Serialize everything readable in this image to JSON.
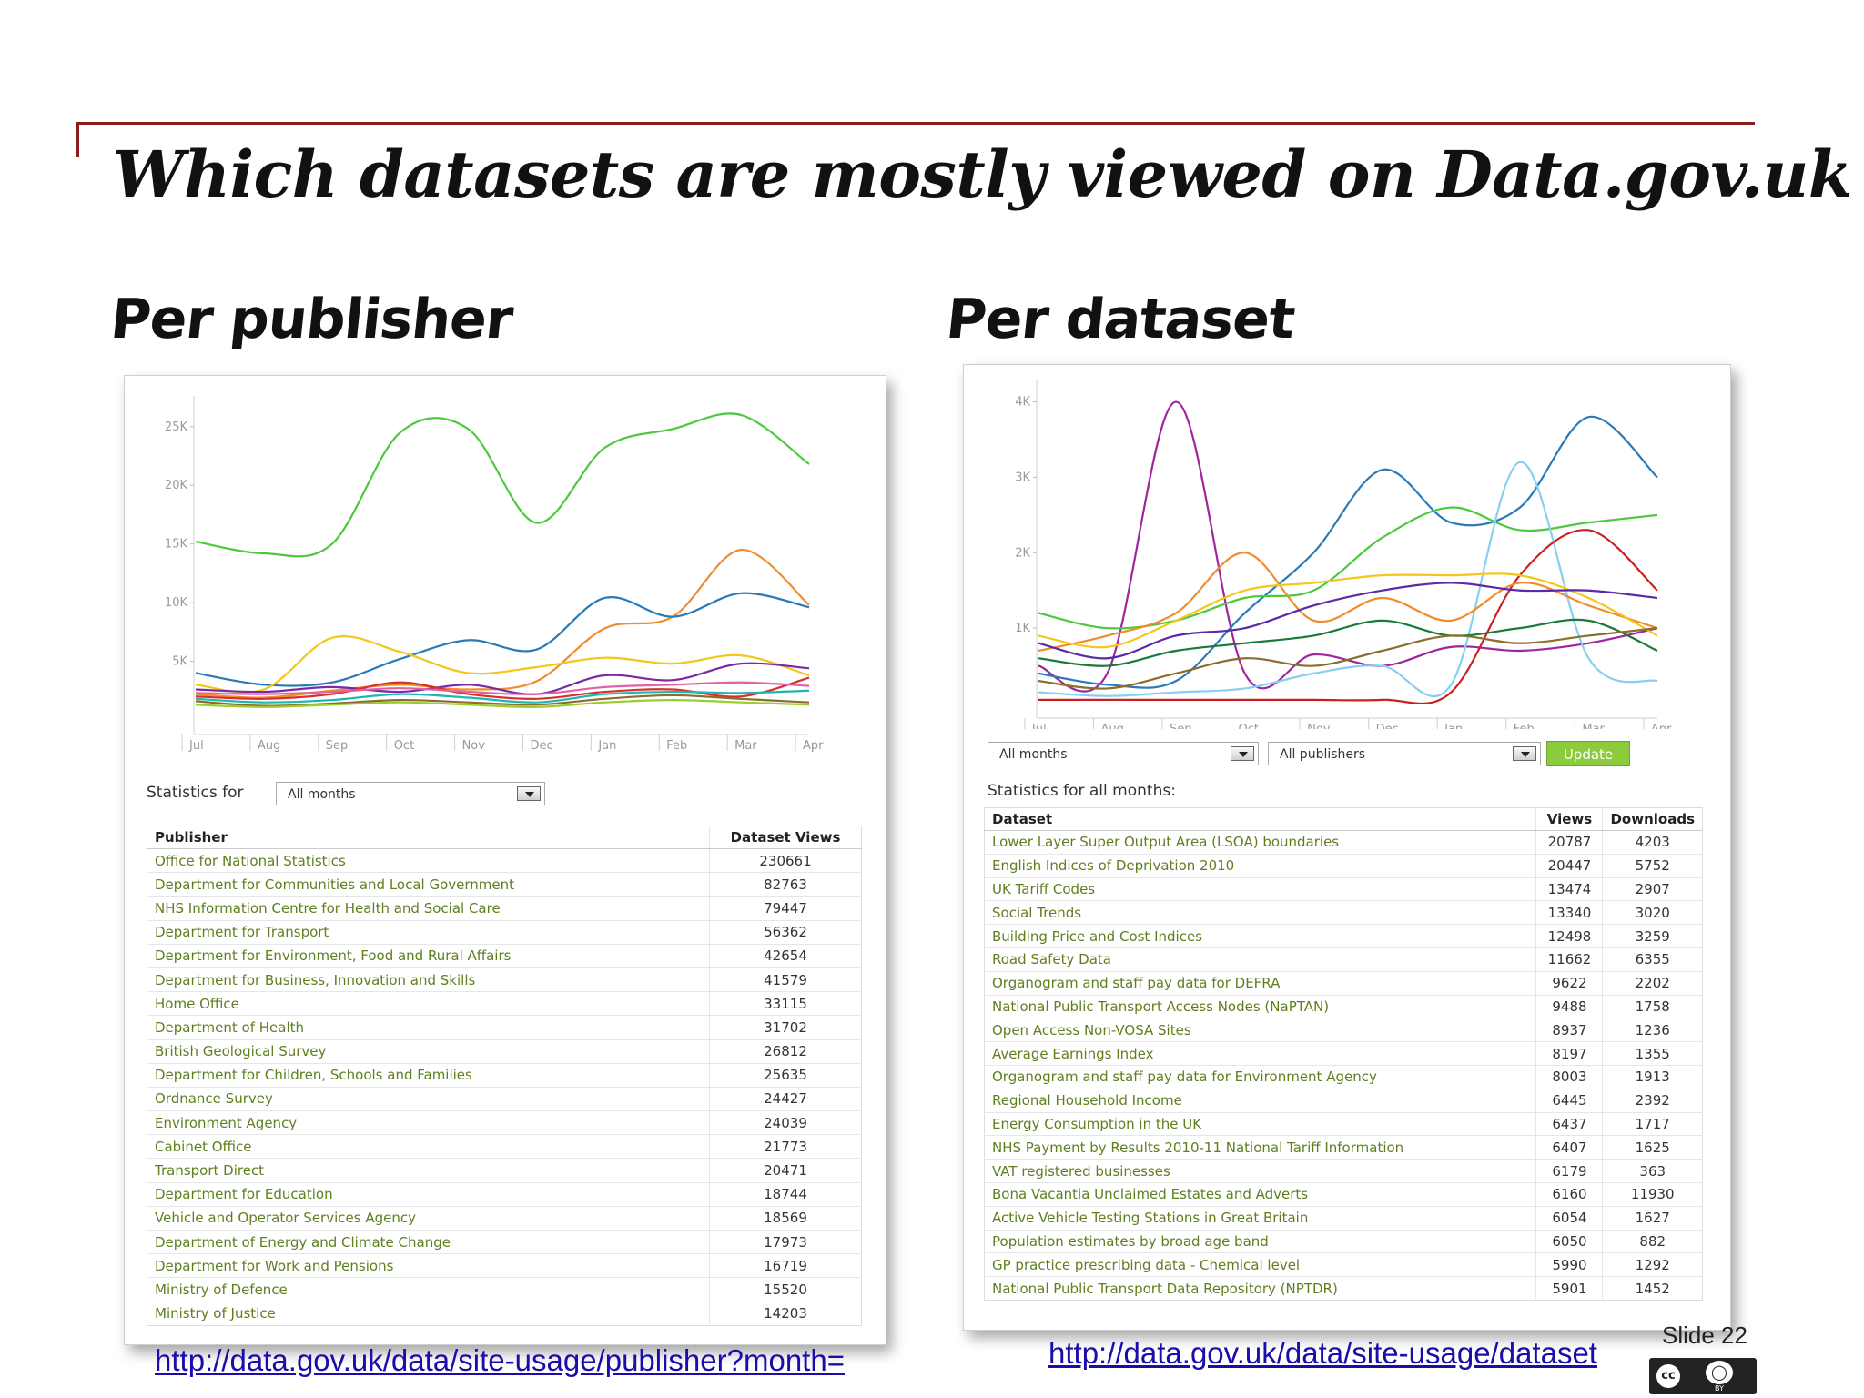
{
  "slide": {
    "title": "Which datasets are mostly viewed on Data.gov.uk",
    "left_heading": "Per publisher",
    "right_heading": "Per dataset",
    "left_url": "http://data.gov.uk/data/site-usage/publisher?month=",
    "right_url": "http://data.gov.uk/data/site-usage/dataset",
    "slide_number": "Slide 22",
    "license_icon": "cc-by-icon",
    "accent_color": "#8c1d1d"
  },
  "publisher_panel": {
    "statistics_for_label": "Statistics for",
    "month_select": "All months",
    "columns": [
      "Publisher",
      "Dataset Views"
    ],
    "rows": [
      [
        "Office for National Statistics",
        "230661"
      ],
      [
        "Department for Communities and Local Government",
        "82763"
      ],
      [
        "NHS Information Centre for Health and Social Care",
        "79447"
      ],
      [
        "Department for Transport",
        "56362"
      ],
      [
        "Department for Environment, Food and Rural Affairs",
        "42654"
      ],
      [
        "Department for Business, Innovation and Skills",
        "41579"
      ],
      [
        "Home Office",
        "33115"
      ],
      [
        "Department of Health",
        "31702"
      ],
      [
        "British Geological Survey",
        "26812"
      ],
      [
        "Department for Children, Schools and Families",
        "25635"
      ],
      [
        "Ordnance Survey",
        "24427"
      ],
      [
        "Environment Agency",
        "24039"
      ],
      [
        "Cabinet Office",
        "21773"
      ],
      [
        "Transport Direct",
        "20471"
      ],
      [
        "Department for Education",
        "18744"
      ],
      [
        "Vehicle and Operator Services Agency",
        "18569"
      ],
      [
        "Department of Energy and Climate Change",
        "17973"
      ],
      [
        "Department for Work and Pensions",
        "16719"
      ],
      [
        "Ministry of Defence",
        "15520"
      ],
      [
        "Ministry of Justice",
        "14203"
      ]
    ]
  },
  "dataset_panel": {
    "month_select": "All months",
    "publisher_select": "All publishers",
    "update_label": "Update",
    "statistics_label": "Statistics for all months:",
    "columns": [
      "Dataset",
      "Views",
      "Downloads"
    ],
    "rows": [
      [
        "Lower Layer Super Output Area (LSOA) boundaries",
        "20787",
        "4203"
      ],
      [
        "English Indices of Deprivation 2010",
        "20447",
        "5752"
      ],
      [
        "UK Tariff Codes",
        "13474",
        "2907"
      ],
      [
        "Social Trends",
        "13340",
        "3020"
      ],
      [
        "Building Price and Cost Indices",
        "12498",
        "3259"
      ],
      [
        "Road Safety Data",
        "11662",
        "6355"
      ],
      [
        "Organogram and staff pay data for DEFRA",
        "9622",
        "2202"
      ],
      [
        "National Public Transport Access Nodes (NaPTAN)",
        "9488",
        "1758"
      ],
      [
        "Open Access Non-VOSA Sites",
        "8937",
        "1236"
      ],
      [
        "Average Earnings Index",
        "8197",
        "1355"
      ],
      [
        "Organogram and staff pay data for Environment Agency",
        "8003",
        "1913"
      ],
      [
        "Regional Household Income",
        "6445",
        "2392"
      ],
      [
        "Energy Consumption in the UK",
        "6437",
        "1717"
      ],
      [
        "NHS Payment by Results 2010-11 National Tariff Information",
        "6407",
        "1625"
      ],
      [
        "VAT registered businesses",
        "6179",
        "363"
      ],
      [
        "Bona Vacantia Unclaimed Estates and Adverts",
        "6160",
        "11930"
      ],
      [
        "Active Vehicle Testing Stations in Great Britain",
        "6054",
        "1627"
      ],
      [
        "Population estimates by broad age band",
        "6050",
        "882"
      ],
      [
        "GP practice prescribing data - Chemical level",
        "5990",
        "1292"
      ],
      [
        "National Public Transport Data Repository (NPTDR)",
        "5901",
        "1452"
      ]
    ]
  },
  "chart_data": [
    {
      "type": "line",
      "categories": [
        "Jul",
        "Aug",
        "Sep",
        "Oct",
        "Nov",
        "Dec",
        "Jan",
        "Feb",
        "Mar",
        "Apr"
      ],
      "ylim": [
        0,
        27000
      ],
      "yticks": [
        "5K",
        "10K",
        "15K",
        "20K",
        "25K"
      ],
      "ytick_values": [
        5000,
        10000,
        15000,
        20000,
        25000
      ],
      "series": [
        {
          "color": "#4cc93c",
          "values": [
            15200,
            14200,
            15000,
            24500,
            24800,
            16800,
            23200,
            24800,
            26000,
            21800
          ]
        },
        {
          "color": "#f08c2c",
          "values": [
            2200,
            1900,
            2500,
            3000,
            2600,
            3300,
            7800,
            8800,
            14500,
            9800
          ]
        },
        {
          "color": "#2a7ab8",
          "values": [
            4000,
            3000,
            3200,
            5200,
            6800,
            6000,
            10400,
            8800,
            10800,
            9600
          ]
        },
        {
          "color": "#f5c61a",
          "values": [
            3000,
            2600,
            7000,
            5800,
            4000,
            4500,
            5300,
            4800,
            5500,
            3800
          ]
        },
        {
          "color": "#7a2aa8",
          "values": [
            2600,
            2400,
            2800,
            2400,
            3000,
            2200,
            3800,
            3400,
            4800,
            4400
          ]
        },
        {
          "color": "#d63030",
          "values": [
            2000,
            1800,
            2200,
            3200,
            2200,
            1800,
            2400,
            2600,
            2000,
            3600
          ]
        },
        {
          "color": "#1fb5b0",
          "values": [
            1800,
            1500,
            1700,
            2200,
            1900,
            1500,
            2200,
            2400,
            2300,
            2500
          ]
        },
        {
          "color": "#8b6d2c",
          "values": [
            1600,
            1200,
            1400,
            1700,
            1500,
            1300,
            1800,
            2100,
            1800,
            1500
          ]
        },
        {
          "color": "#e062a0",
          "values": [
            2300,
            2200,
            2400,
            2700,
            2400,
            2200,
            2800,
            3000,
            3200,
            2900
          ]
        },
        {
          "color": "#9acd32",
          "values": [
            1300,
            1100,
            1300,
            1500,
            1300,
            1100,
            1500,
            1700,
            1500,
            1300
          ]
        }
      ]
    },
    {
      "type": "line",
      "categories": [
        "Jul",
        "Aug",
        "Sep",
        "Oct",
        "Nov",
        "Dec",
        "Jan",
        "Feb",
        "Mar",
        "Apr"
      ],
      "ylim": [
        0,
        4200
      ],
      "yticks": [
        "1K",
        "2K",
        "3K",
        "4K"
      ],
      "ytick_values": [
        1000,
        2000,
        3000,
        4000
      ],
      "series": [
        {
          "color": "#a0259c",
          "values": [
            500,
            400,
            4000,
            400,
            650,
            500,
            750,
            700,
            800,
            1000
          ]
        },
        {
          "color": "#2a7ab8",
          "values": [
            400,
            250,
            300,
            1200,
            2000,
            3100,
            2400,
            2600,
            3800,
            3000
          ]
        },
        {
          "color": "#4cc93c",
          "values": [
            1200,
            1000,
            1100,
            1400,
            1500,
            2200,
            2600,
            2300,
            2400,
            2500
          ]
        },
        {
          "color": "#87cff0",
          "values": [
            150,
            100,
            150,
            200,
            400,
            500,
            250,
            3200,
            600,
            300
          ]
        },
        {
          "color": "#cc2020",
          "values": [
            50,
            50,
            50,
            50,
            50,
            50,
            150,
            1700,
            2300,
            1500
          ]
        },
        {
          "color": "#f08c2c",
          "values": [
            700,
            900,
            1200,
            2000,
            1100,
            1400,
            1100,
            1600,
            1300,
            1000
          ]
        },
        {
          "color": "#f5c61a",
          "values": [
            900,
            750,
            1100,
            1500,
            1600,
            1700,
            1700,
            1700,
            1400,
            900
          ]
        },
        {
          "color": "#5a2aa8",
          "values": [
            800,
            600,
            900,
            1000,
            1300,
            1500,
            1600,
            1500,
            1500,
            1400
          ]
        },
        {
          "color": "#1a7a3a",
          "values": [
            600,
            500,
            700,
            800,
            900,
            1100,
            900,
            1000,
            1100,
            700
          ]
        },
        {
          "color": "#8b6d2c",
          "values": [
            300,
            200,
            400,
            600,
            500,
            700,
            900,
            800,
            900,
            1000
          ]
        }
      ]
    }
  ]
}
